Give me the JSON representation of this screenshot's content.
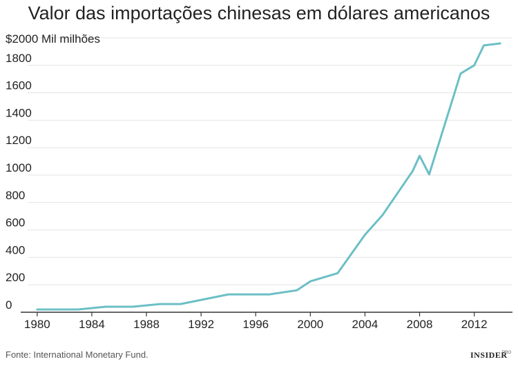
{
  "chart_data": {
    "type": "line",
    "title": "Valor das importações chinesas em dólares americanos",
    "ylabel": "$2000 Mil milhões",
    "xlabel": "",
    "xlim": [
      1979.3,
      2014.8
    ],
    "ylim": [
      0,
      2000
    ],
    "x_ticks": [
      1980,
      1984,
      1988,
      1992,
      1996,
      2000,
      2004,
      2008,
      2012
    ],
    "y_ticks": [
      0,
      200,
      400,
      600,
      800,
      1000,
      1200,
      1400,
      1600,
      1800
    ],
    "y_tick_labels": [
      "0",
      "200",
      "400",
      "600",
      "800",
      "1000",
      "1200",
      "1400",
      "1600",
      "1800"
    ],
    "grid": true,
    "line_color": "#6bbfc5",
    "series": [
      {
        "x": [
          1980,
          1983,
          1985,
          1987,
          1989,
          1990.5,
          1994,
          1997,
          1999,
          2000,
          2002,
          2004,
          2005.3,
          2007.5,
          2008,
          2008.7,
          2011,
          2012,
          2012.7,
          2013.9
        ],
        "values": [
          20,
          20,
          40,
          40,
          60,
          60,
          130,
          130,
          160,
          225,
          285,
          565,
          710,
          1030,
          1140,
          1005,
          1740,
          1800,
          1945,
          1960
        ]
      }
    ]
  },
  "source": "Fonte: International Monetary Fund.",
  "brand": {
    "name": "INSIDER",
    "suffix": "PRO"
  }
}
